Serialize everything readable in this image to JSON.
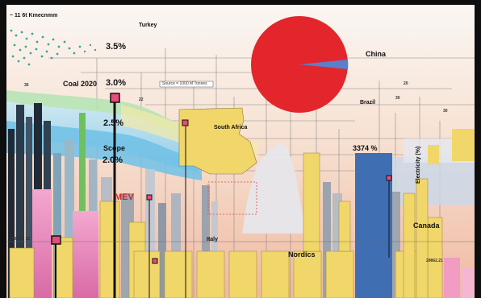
{
  "labels": {
    "header_note": "~ 11 6t Kmecnmm",
    "turkey": "Turkey",
    "pct_35": "3.5%",
    "coal_2020": "Coal 2020",
    "pct_30": "3.0%",
    "pct_25": "2.5%",
    "pct_20": "2.0%",
    "scope": "Scope",
    "south_africa": "South Africa",
    "china": "China",
    "brazil": "Brazil",
    "value_3374": "3374 %",
    "vertical_label": "Electricity (%)",
    "mev": "MEV",
    "italy": "Italy",
    "nordics": "Nordics",
    "canada": "Canada",
    "legend_box": "Source = 1000 M Tonnes",
    "base_left": "2002 04 12",
    "base_right": "29862.21",
    "n_36": "36",
    "n_30": "30",
    "n_20": "20",
    "n_22": "22",
    "n_30b": "30"
  },
  "colors": {
    "china_circle": "#e3262c",
    "china_slice": "#5b7fc9",
    "yellow_bar": "#f1d66a",
    "tall_blue_bar": "#3f6fb2",
    "pink_bar": "#e78dc0",
    "green_bar": "#6fc05f",
    "sky_top": "#f7f3ef",
    "sky_bottom": "#f4cdb6"
  },
  "icons": {
    "marker": "square-marker-icon",
    "wave": "wave-band-icon"
  }
}
